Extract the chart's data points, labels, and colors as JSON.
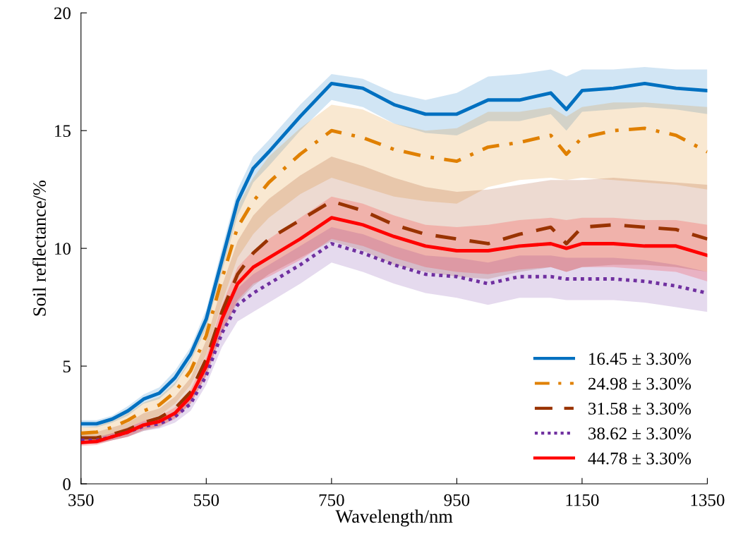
{
  "chart_data": {
    "type": "line",
    "xlabel": "Wavelength/nm",
    "ylabel": "Soil reflectance/%",
    "x": [
      350,
      375,
      400,
      425,
      450,
      475,
      500,
      525,
      550,
      575,
      600,
      625,
      650,
      700,
      750,
      800,
      850,
      900,
      950,
      1000,
      1050,
      1100,
      1125,
      1150,
      1200,
      1250,
      1300,
      1350
    ],
    "series": [
      {
        "name": "16.45 ± 3.30%",
        "color": "#0070c0",
        "line_style": "solid",
        "values": [
          2.55,
          2.55,
          2.75,
          3.1,
          3.6,
          3.85,
          4.5,
          5.5,
          7.0,
          9.5,
          12.0,
          13.4,
          14.1,
          15.6,
          17.0,
          16.8,
          16.1,
          15.7,
          15.7,
          16.3,
          16.3,
          16.6,
          15.9,
          16.7,
          16.8,
          17.0,
          16.8,
          16.7
        ],
        "lower": [
          2.4,
          2.4,
          2.6,
          2.9,
          3.4,
          3.6,
          4.2,
          5.2,
          6.6,
          9.0,
          11.4,
          12.8,
          13.5,
          15.0,
          16.3,
          16.0,
          15.3,
          14.9,
          14.8,
          15.4,
          15.4,
          15.7,
          15.0,
          15.8,
          15.9,
          16.0,
          15.9,
          15.7
        ],
        "upper": [
          2.7,
          2.7,
          2.9,
          3.3,
          3.8,
          4.1,
          4.8,
          5.8,
          7.4,
          10.0,
          12.5,
          13.9,
          14.6,
          16.1,
          17.4,
          17.2,
          16.6,
          16.3,
          16.6,
          17.3,
          17.4,
          17.6,
          17.3,
          17.6,
          17.6,
          17.7,
          17.6,
          17.6
        ]
      },
      {
        "name": "24.98 ± 3.30%",
        "color": "#e08000",
        "line_style": "dashdot",
        "values": [
          2.15,
          2.2,
          2.4,
          2.7,
          3.1,
          3.35,
          3.9,
          4.8,
          6.3,
          8.7,
          10.9,
          12.0,
          12.8,
          14.0,
          15.0,
          14.7,
          14.2,
          13.9,
          13.7,
          14.3,
          14.5,
          14.8,
          14.0,
          14.7,
          15.0,
          15.1,
          14.8,
          14.1
        ],
        "lower": [
          1.9,
          1.95,
          2.1,
          2.4,
          2.7,
          2.9,
          3.4,
          4.2,
          5.5,
          7.7,
          9.6,
          10.6,
          11.3,
          12.3,
          13.0,
          12.6,
          12.2,
          12.0,
          11.9,
          12.6,
          12.9,
          13.0,
          12.9,
          13.0,
          12.9,
          12.8,
          12.7,
          12.5
        ],
        "upper": [
          2.4,
          2.45,
          2.7,
          3.0,
          3.45,
          3.7,
          4.3,
          5.3,
          6.9,
          9.5,
          11.8,
          13.0,
          13.9,
          15.1,
          16.1,
          15.9,
          15.3,
          15.0,
          15.1,
          15.8,
          15.8,
          16.0,
          15.6,
          16.0,
          16.2,
          16.2,
          16.1,
          16.0
        ]
      },
      {
        "name": "31.58 ± 3.30%",
        "color": "#993300",
        "line_style": "dashed",
        "values": [
          1.95,
          1.95,
          2.1,
          2.3,
          2.6,
          2.8,
          3.2,
          3.9,
          5.3,
          7.3,
          8.9,
          9.8,
          10.4,
          11.2,
          12.0,
          11.6,
          11.0,
          10.6,
          10.4,
          10.2,
          10.6,
          10.9,
          10.2,
          10.9,
          11.0,
          10.9,
          10.8,
          10.4
        ],
        "lower": [
          1.7,
          1.7,
          1.85,
          2.0,
          2.25,
          2.4,
          2.8,
          3.4,
          4.6,
          6.4,
          7.7,
          8.4,
          8.9,
          9.6,
          10.3,
          9.9,
          9.3,
          9.0,
          8.8,
          8.7,
          9.0,
          9.2,
          9.0,
          9.2,
          9.3,
          9.3,
          9.2,
          9.0
        ],
        "upper": [
          2.2,
          2.2,
          2.4,
          2.6,
          3.0,
          3.2,
          3.7,
          4.5,
          6.1,
          8.4,
          10.3,
          11.4,
          12.1,
          13.1,
          13.9,
          13.5,
          13.0,
          12.6,
          12.4,
          12.5,
          12.7,
          12.9,
          12.9,
          12.9,
          13.0,
          12.9,
          12.8,
          12.7
        ]
      },
      {
        "name": "38.62 ± 3.30%",
        "color": "#7030a0",
        "line_style": "dotted",
        "values": [
          1.85,
          1.85,
          2.0,
          2.2,
          2.45,
          2.55,
          2.85,
          3.4,
          4.6,
          6.4,
          7.6,
          8.1,
          8.5,
          9.3,
          10.2,
          9.8,
          9.3,
          8.9,
          8.8,
          8.5,
          8.8,
          8.8,
          8.7,
          8.7,
          8.7,
          8.6,
          8.4,
          8.1
        ],
        "lower": [
          1.7,
          1.7,
          1.85,
          2.0,
          2.25,
          2.35,
          2.6,
          3.1,
          4.2,
          5.8,
          6.9,
          7.3,
          7.7,
          8.5,
          9.4,
          9.0,
          8.5,
          8.1,
          7.9,
          7.6,
          7.9,
          7.9,
          7.8,
          7.8,
          7.8,
          7.7,
          7.5,
          7.3
        ],
        "upper": [
          2.0,
          2.0,
          2.15,
          2.4,
          2.65,
          2.75,
          3.1,
          3.7,
          5.0,
          7.0,
          8.3,
          8.9,
          9.3,
          10.1,
          10.9,
          10.6,
          10.1,
          9.7,
          9.6,
          9.4,
          9.7,
          9.7,
          9.6,
          9.6,
          9.6,
          9.5,
          9.3,
          9.0
        ]
      },
      {
        "name": "44.78 ± 3.30%",
        "color": "#ff0000",
        "line_style": "solid",
        "values": [
          1.75,
          1.8,
          2.0,
          2.2,
          2.5,
          2.65,
          3.0,
          3.7,
          5.0,
          7.0,
          8.5,
          9.2,
          9.6,
          10.4,
          11.3,
          11.0,
          10.5,
          10.1,
          9.9,
          9.9,
          10.1,
          10.2,
          10.0,
          10.2,
          10.2,
          10.1,
          10.1,
          9.7
        ],
        "lower": [
          1.6,
          1.65,
          1.85,
          2.0,
          2.3,
          2.45,
          2.75,
          3.4,
          4.6,
          6.4,
          7.8,
          8.5,
          8.8,
          9.5,
          10.4,
          10.1,
          9.6,
          9.2,
          9.0,
          8.9,
          9.1,
          9.2,
          9.0,
          9.2,
          9.2,
          9.1,
          9.0,
          8.6
        ],
        "upper": [
          1.9,
          1.95,
          2.15,
          2.4,
          2.7,
          2.85,
          3.25,
          4.0,
          5.4,
          7.6,
          9.2,
          9.9,
          10.4,
          11.3,
          12.2,
          11.9,
          11.4,
          11.0,
          10.9,
          11.0,
          11.2,
          11.3,
          11.2,
          11.3,
          11.3,
          11.2,
          11.2,
          11.0
        ]
      }
    ],
    "xlim": [
      350,
      1350
    ],
    "xticks": [
      350,
      550,
      750,
      950,
      1150,
      1350
    ],
    "ylim": [
      0,
      20
    ],
    "yticks": [
      0,
      5,
      10,
      15,
      20
    ],
    "grid": false,
    "legend": "bottom right"
  }
}
